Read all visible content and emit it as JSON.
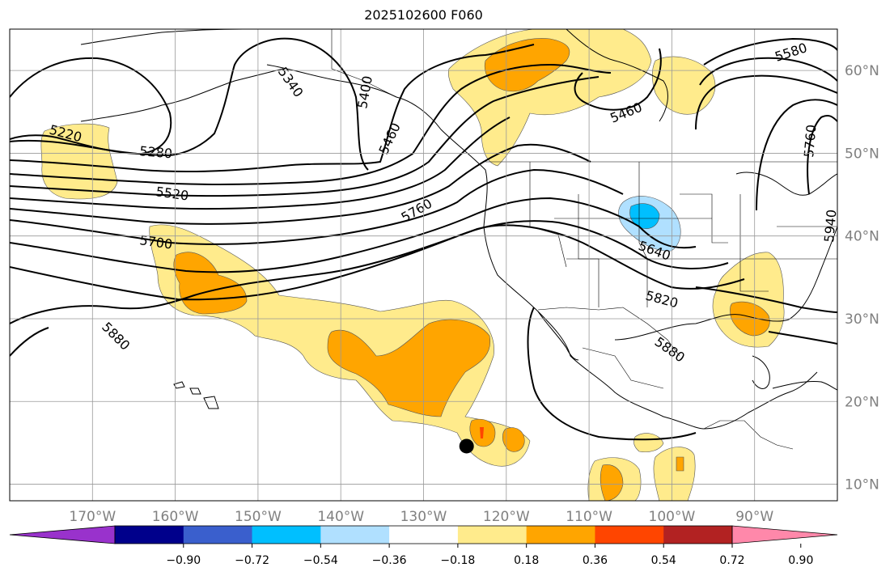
{
  "title": "2025102600 F060",
  "map": {
    "projection": "equirectangular",
    "lon_range": [
      -180,
      -80
    ],
    "lat_range": [
      8,
      65
    ],
    "grid_interval_deg": 10,
    "lon_labels": [
      "170°W",
      "160°W",
      "150°W",
      "140°W",
      "130°W",
      "120°W",
      "110°W",
      "100°W",
      "90°W"
    ],
    "lat_labels": [
      "10°N",
      "20°N",
      "30°N",
      "40°N",
      "50°N",
      "60°N"
    ],
    "grid": true,
    "label_color": "#808080"
  },
  "contour_labels": [
    "5220",
    "5280",
    "5340",
    "5400",
    "5460",
    "5460",
    "5520",
    "5580",
    "5640",
    "5700",
    "5760",
    "5760",
    "5820",
    "5880",
    "5880",
    "5940"
  ],
  "fill_colors": {
    "light_yellow": "#ffeb8c",
    "orange": "#ffa500",
    "red_orange": "#ff4500",
    "light_blue": "#b0e0ff",
    "cyan": "#00bfff"
  },
  "marker": {
    "name": "black-dot",
    "lon": -124.8,
    "lat": 14.6,
    "color": "#000000"
  },
  "colorbar": {
    "colors": [
      "#9932cc",
      "#00008b",
      "#3a5fcd",
      "#00bfff",
      "#b0e0ff",
      "#ffffff",
      "#ffeb8c",
      "#ffa500",
      "#ff4500",
      "#b22222",
      "#ff88aa"
    ],
    "tick_labels": [
      "−0.90",
      "−0.72",
      "−0.54",
      "−0.36",
      "−0.18",
      "0.18",
      "0.36",
      "0.54",
      "0.72",
      "0.90"
    ],
    "extend": "both"
  }
}
